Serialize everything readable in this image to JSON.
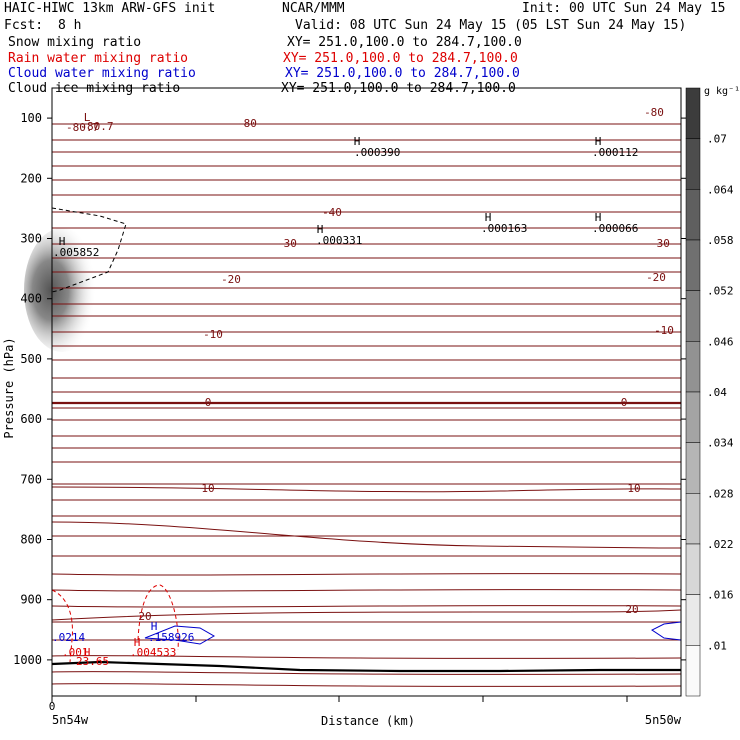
{
  "header": {
    "title_left": "HAIC-HIWC 13km ARW-GFS init",
    "title_center": "NCAR/MMM",
    "init": "Init: 00 UTC Sun 24 May 15",
    "fcst_label": "Fcst:",
    "fcst_value": "8 h",
    "valid": "Valid: 08 UTC Sun 24 May 15 (05 LST Sun 24 May 15)"
  },
  "fields": [
    {
      "name": "Snow mixing ratio",
      "xy": "XY= 251.0,100.0 to 284.7,100.0",
      "color": "#000000"
    },
    {
      "name": "Rain water mixing ratio",
      "xy": "XY= 251.0,100.0 to 284.7,100.0",
      "color": "#dd0000"
    },
    {
      "name": "Cloud water mixing ratio",
      "xy": "XY= 251.0,100.0 to 284.7,100.0",
      "color": "#0000cc"
    },
    {
      "name": "Cloud ice mixing ratio",
      "xy": "XY= 251.0,100.0 to 284.7,100.0",
      "color": "#000000"
    }
  ],
  "chart_data": {
    "type": "contour",
    "ylabel": "Pressure (hPa)",
    "xlabel": "Distance (km)",
    "yticks": [
      100,
      200,
      300,
      400,
      500,
      600,
      700,
      800,
      900,
      1000
    ],
    "ylim": [
      50,
      1060
    ],
    "x_left_label": "5n54w",
    "x_right_label": "5n50w",
    "x_zero_label": "0",
    "colorbar": {
      "unit": "g kg⁻¹",
      "levels": [
        ".07",
        ".064",
        ".058",
        ".052",
        ".046",
        ".04",
        ".034",
        ".028",
        ".022",
        ".016",
        ".01"
      ]
    },
    "temperature_labels": [
      "-80",
      "-80.7",
      "-80",
      "-40",
      "-30",
      "-30",
      "-20",
      "-20",
      "-10",
      "-10",
      "0",
      "0",
      "10",
      "10",
      "20",
      "20"
    ],
    "extrema": [
      {
        "type": "L",
        "value": "-80.7"
      },
      {
        "type": "H",
        "value": ".000390"
      },
      {
        "type": "H",
        "value": ".000112"
      },
      {
        "type": "H",
        "value": ".000331"
      },
      {
        "type": "H",
        "value": ".000163"
      },
      {
        "type": "H",
        "value": ".000066"
      },
      {
        "type": "H",
        "value": ".005852"
      },
      {
        "type": "H",
        "value": ".158926"
      },
      {
        "type": "H",
        "value": ".004533"
      },
      {
        "type": "H",
        "value": ".0214"
      },
      {
        "type": "H",
        "value": ".001"
      },
      {
        "type": "H",
        "value": "23.65"
      }
    ]
  }
}
